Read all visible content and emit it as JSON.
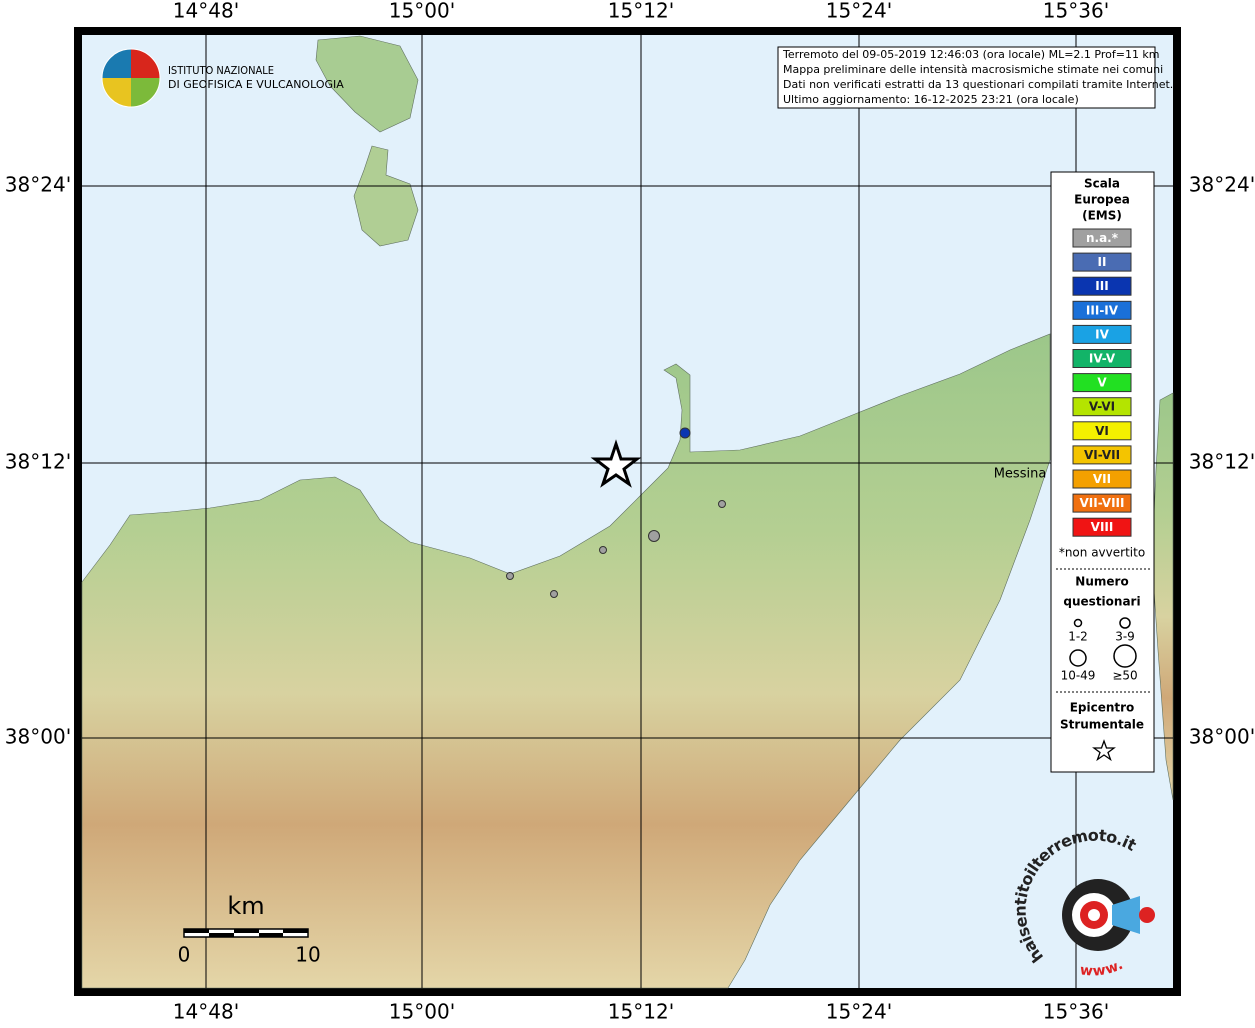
{
  "map": {
    "lon_labels": [
      "14°48'",
      "15°00'",
      "15°12'",
      "15°24'",
      "15°36'"
    ],
    "lat_labels": [
      "38°24'",
      "38°12'",
      "38°00'"
    ],
    "logo": {
      "line1": "ISTITUTO NAZIONALE",
      "line2": "DI GEOFISICA E VULCANOLOGIA"
    },
    "info": [
      "Terremoto del 09-05-2019 12:46:03 (ora locale) ML=2.1 Prof=11 km",
      "Mappa preliminare delle intensità macrosismiche stimate nei comuni",
      "Dati non verificati estratti da 13 questionari compilati tramite Internet.",
      "Ultimo aggiornamento: 16-12-2025 23:21 (ora locale)"
    ],
    "city": "Messina",
    "scale": {
      "unit": "km",
      "start": "0",
      "end": "10"
    },
    "watermark": {
      "prefix": "www.",
      "site": "haisentitoilterremoto.it"
    }
  },
  "legend": {
    "title": [
      "Scala",
      "Europea",
      "(EMS)"
    ],
    "items": [
      {
        "label": "n.a.*",
        "color": "#a0a0a0"
      },
      {
        "label": "II",
        "color": "#4a6cb3"
      },
      {
        "label": "III",
        "color": "#0a35b0"
      },
      {
        "label": "III-IV",
        "color": "#1a70d8"
      },
      {
        "label": "IV",
        "color": "#1aa2e4"
      },
      {
        "label": "IV-V",
        "color": "#12b468"
      },
      {
        "label": "V",
        "color": "#22e022"
      },
      {
        "label": "V-VI",
        "color": "#b4e400"
      },
      {
        "label": "VI",
        "color": "#f4f000"
      },
      {
        "label": "VI-VII",
        "color": "#f4c400"
      },
      {
        "label": "VII",
        "color": "#f4a000"
      },
      {
        "label": "VII-VIII",
        "color": "#f07010"
      },
      {
        "label": "VIII",
        "color": "#f01414"
      }
    ],
    "note": "*non avvertito",
    "count_title": [
      "Numero",
      "questionari"
    ],
    "counts": [
      "1-2",
      "3-9",
      "10-49",
      "≥50"
    ],
    "epicenter_title": [
      "Epicentro",
      "Strumentale"
    ]
  }
}
